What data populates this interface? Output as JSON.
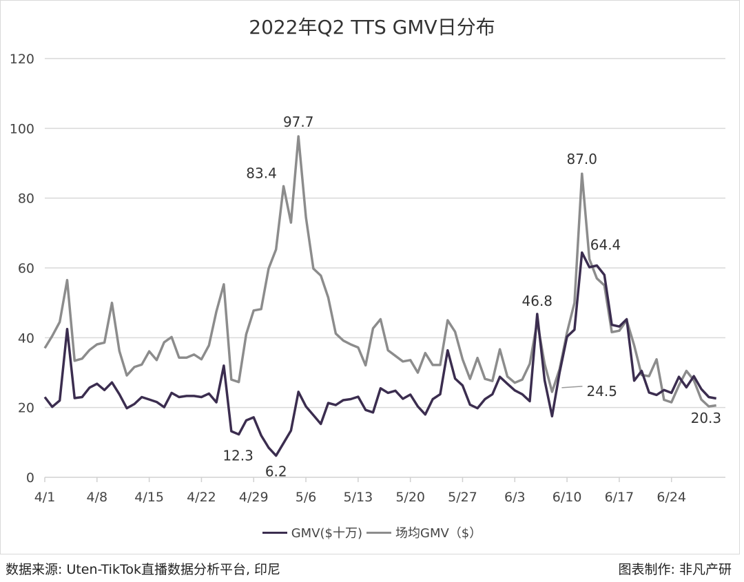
{
  "chart_data": {
    "type": "line",
    "title": "2022年Q2 TTS GMV日分布",
    "xlabel": "",
    "ylabel": "",
    "ylim": [
      0,
      120
    ],
    "yticks": [
      "0",
      "20",
      "40",
      "60",
      "80",
      "100",
      "120"
    ],
    "xticks": [
      "4/1",
      "4/8",
      "4/15",
      "4/22",
      "4/29",
      "5/6",
      "5/13",
      "5/20",
      "5/27",
      "6/3",
      "6/10",
      "6/17",
      "6/24"
    ],
    "x_range": [
      "4/1",
      "6/30"
    ],
    "grid": "horizontal",
    "legend": "bottom",
    "series": [
      {
        "name": "GMV($十万)",
        "color": "#3b2d4f",
        "values": [
          23,
          20.2,
          22,
          42.5,
          22.7,
          23,
          25.7,
          26.8,
          25,
          27.2,
          23.8,
          19.8,
          21,
          23,
          22.3,
          21.6,
          20.1,
          24.2,
          23,
          23.3,
          23.3,
          23,
          24,
          21.5,
          32,
          13.2,
          12.3,
          16.3,
          17.2,
          12,
          8.5,
          6.2,
          9.8,
          13.4,
          24.5,
          20.3,
          17.8,
          15.3,
          21.3,
          20.7,
          22.1,
          22.4,
          23.1,
          19.3,
          18.6,
          25.5,
          24.2,
          24.8,
          22.5,
          23.7,
          20.3,
          18,
          22.4,
          23.8,
          36.4,
          28.3,
          26.3,
          20.8,
          19.8,
          22.4,
          23.8,
          28.8,
          26.8,
          24.9,
          23.8,
          21.8,
          46.8,
          27.8,
          17.5,
          30,
          40.3,
          42.3,
          64.4,
          60.2,
          60.7,
          58,
          43.7,
          43.2,
          45.3,
          27.7,
          30.5,
          24.3,
          23.6,
          25,
          24.2,
          28.8,
          25.8,
          29,
          25.3,
          23,
          22.6
        ]
      },
      {
        "name": "场均GMV（$）",
        "color": "#8c8c8c",
        "values": [
          37,
          40.5,
          44.5,
          56.5,
          33.4,
          34,
          36.5,
          38.1,
          38.6,
          50,
          36.2,
          29.2,
          31.6,
          32.3,
          36.1,
          33.6,
          38.7,
          40.2,
          34.3,
          34.3,
          35.2,
          33.8,
          37.8,
          47.5,
          55.3,
          28,
          27.3,
          41,
          47.8,
          48.2,
          59.8,
          65.3,
          83.4,
          73,
          97.7,
          74.5,
          59.8,
          57.8,
          51.5,
          41.2,
          39.2,
          38.1,
          37.2,
          32.1,
          42.7,
          45.3,
          36.4,
          34.8,
          33.2,
          33.6,
          30,
          35.6,
          32.2,
          32.2,
          45,
          41.7,
          33.8,
          28.2,
          34.2,
          28.2,
          27.6,
          36.7,
          28.9,
          27.1,
          28,
          32.5,
          44.6,
          32.5,
          24.5,
          31,
          41.5,
          50,
          87,
          62.5,
          57,
          55,
          41.6,
          42,
          45,
          37.8,
          29.3,
          29,
          33.8,
          22.2,
          21.5,
          26.3,
          30.5,
          27.8,
          22.3,
          20.3,
          20.6
        ]
      }
    ],
    "annotations": [
      {
        "series": 1,
        "day": 32,
        "text": "83.4"
      },
      {
        "series": 1,
        "day": 34,
        "text": "97.7"
      },
      {
        "series": 1,
        "day": 72,
        "text": "87.0"
      },
      {
        "series": 0,
        "day": 72,
        "text": "64.4"
      },
      {
        "series": 0,
        "day": 66,
        "text": "46.8"
      },
      {
        "series": 1,
        "day": 68,
        "text": "24.5"
      },
      {
        "series": 1,
        "day": 89,
        "text": "20.3"
      },
      {
        "series": 0,
        "day": 26,
        "text": "12.3"
      },
      {
        "series": 0,
        "day": 31,
        "text": "6.2"
      }
    ]
  },
  "footer": {
    "source": "数据来源: Uten-TikTok直播数据分析平台, 印尼",
    "credit": "图表制作: 非凡产研"
  }
}
